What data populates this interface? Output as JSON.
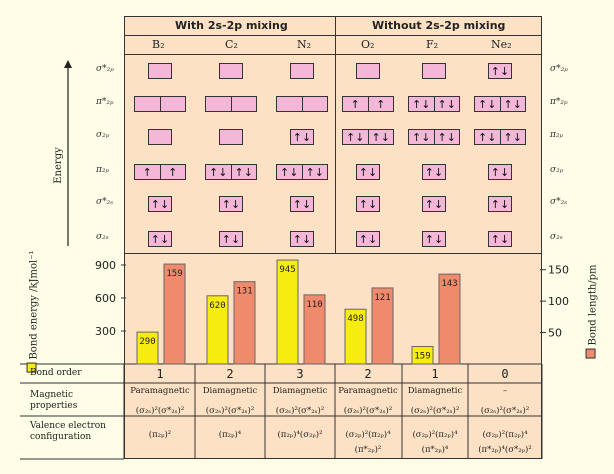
{
  "headers": {
    "with_mixing": "With 2s-2p mixing",
    "without_mixing": "Without 2s-2p mixing"
  },
  "molecules": [
    "B₂",
    "C₂",
    "N₂",
    "O₂",
    "F₂",
    "Ne₂"
  ],
  "y_axis_label": "Energy",
  "left_orbital_labels": [
    "σ*₂ₚ",
    "π*₂ₚ",
    "σ₂ₚ",
    "π₂ₚ",
    "σ*₂ₛ",
    "σ₂ₛ"
  ],
  "right_orbital_labels": [
    "σ*₂ₚ",
    "π*₂ₚ",
    "π₂ₚ",
    "σ₂ₚ",
    "σ*₂ₛ",
    "σ₂ₛ"
  ],
  "mo_occupancy": [
    [
      "",
      "",
      "",
      "",
      "",
      "↑↓"
    ],
    [
      "|",
      "|",
      "|",
      "↑|↑",
      "↑↓|↑↓",
      "↑↓|↑↓"
    ],
    [
      "",
      "",
      "↑↓",
      "↑↓|↑↓",
      "↑↓|↑↓",
      "↑↓|↑↓"
    ],
    [
      "↑|↑",
      "↑↓|↑↓",
      "↑↓|↑↓",
      "↑↓",
      "↑↓",
      "↑↓"
    ],
    [
      "↑↓",
      "↑↓",
      "↑↓",
      "↑↓",
      "↑↓",
      "↑↓"
    ],
    [
      "↑↓",
      "↑↓",
      "↑↓",
      "↑↓",
      "↑↓",
      "↑↓"
    ]
  ],
  "chart_data": {
    "type": "bar",
    "categories": [
      "B₂",
      "C₂",
      "N₂",
      "O₂",
      "F₂",
      "Ne₂"
    ],
    "series": [
      {
        "name": "Bond energy /kJmol⁻¹",
        "values": [
          290,
          620,
          945,
          498,
          159,
          null
        ],
        "color": "#f6ec10"
      },
      {
        "name": "Bond length/pm",
        "values": [
          159,
          131,
          110,
          121,
          143,
          null
        ],
        "color": "#f08a6c"
      }
    ],
    "left_ylabel": "Bond energy /kJmol⁻¹",
    "right_ylabel": "Bond length/pm",
    "left_ylim": [
      0,
      1000
    ],
    "right_ylim": [
      0,
      175
    ],
    "left_ticks": [
      300,
      600,
      900
    ],
    "right_ticks": [
      50,
      100,
      150
    ]
  },
  "table": {
    "row_labels": [
      "Bond order",
      "Magnetic properties",
      "Valence electron configuration"
    ],
    "bond_order": [
      "1",
      "2",
      "3",
      "2",
      "1",
      "0"
    ],
    "magnetic": [
      "Paramagnetic",
      "Diamagnetic",
      "Diamagnetic",
      "Paramagnetic",
      "Diamagnetic",
      "–"
    ],
    "config_line1": [
      "(σ₂ₛ)²(σ*₂ₛ)²",
      "(σ₂ₛ)²(σ*₂ₛ)²",
      "(σ₂ₛ)²(σ*₂ₛ)²",
      "(σ₂ₛ)²(σ*₂ₛ)²",
      "(σ₂ₛ)²(σ*₂ₛ)²",
      "(σ₂ₛ)²(σ*₂ₛ)²"
    ],
    "config_line2": [
      "(π₂ₚ)²",
      "(π₂ₚ)⁴",
      "(π₂ₚ)⁴(σ₂ₚ)²",
      "(σ₂ₚ)²(π₂ₚ)⁴",
      "(σ₂ₚ)²(π₂ₚ)⁴",
      "(σ₂ₚ)²(π₂ₚ)⁴"
    ],
    "config_line3": [
      "",
      "",
      "",
      "(π*₂ₚ)²",
      "(π*₂ₚ)⁴",
      "(π*₂ₚ)⁴(σ*₂ₚ)²"
    ]
  },
  "colors": {
    "orbital_box": "#f4b7d8",
    "energy_bar": "#f6ec10",
    "length_bar": "#f08a6c",
    "panel_bg": "#fce1c5",
    "page_bg": "#fefde8"
  }
}
